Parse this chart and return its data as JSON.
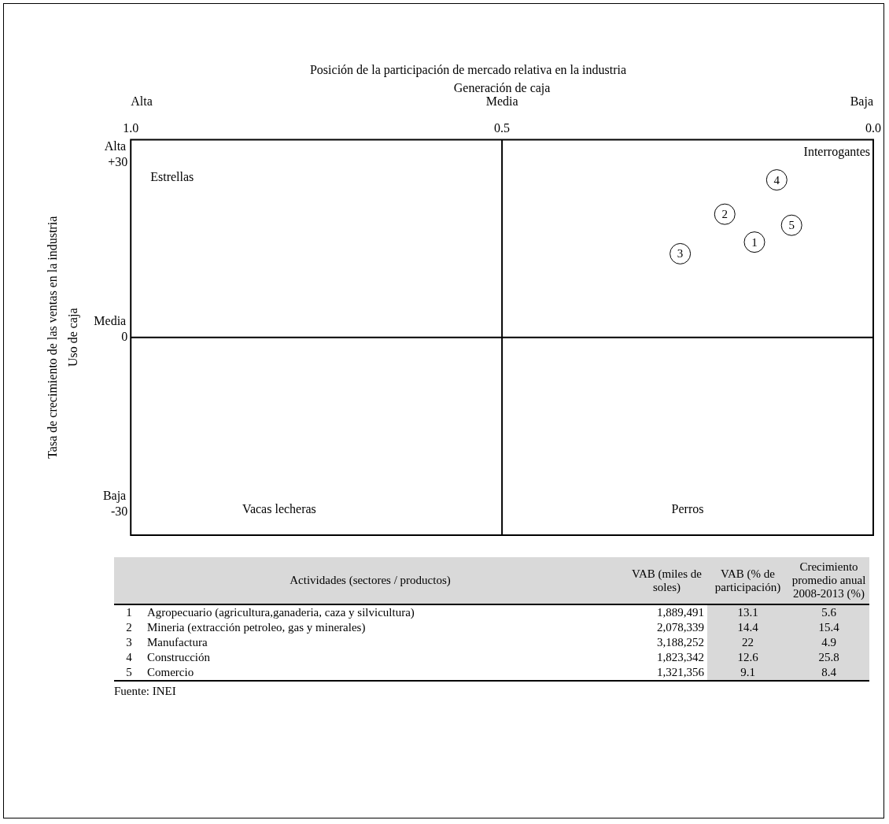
{
  "chart_data": [
    {
      "type": "scatter",
      "title": "Posición de la participación de mercado relativa en la industria",
      "xlabel": "Generación de caja",
      "ylabel": "Uso de caja",
      "xlim": [
        1,
        0
      ],
      "xticks": [
        {
          "value": 1,
          "label": "1.0"
        },
        {
          "value": 0.5,
          "label": "0.5"
        },
        {
          "value": 0,
          "label": "0.0"
        }
      ],
      "ylim": [
        -34,
        34
      ],
      "yticks": [
        {
          "value": 30,
          "label": "+30"
        },
        0,
        -30
      ],
      "series": [
        {
          "name": "1",
          "color": "#000000",
          "x": [
            0.16
          ],
          "values": [
            16.4
          ]
        },
        {
          "name": "2",
          "color": "#000000",
          "x": [
            0.2
          ],
          "values": [
            21.2
          ]
        },
        {
          "name": "3",
          "color": "#000000",
          "x": [
            0.26
          ],
          "values": [
            14.4
          ]
        },
        {
          "name": "4",
          "color": "#000000",
          "x": [
            0.13
          ],
          "values": [
            27.1
          ]
        },
        {
          "name": "5",
          "color": "#000000",
          "x": [
            0.11
          ],
          "values": [
            19.3
          ]
        }
      ],
      "marker": "circle",
      "legend": false,
      "ref_lines": [
        {
          "axis": "x",
          "value": 0.5,
          "color": "#000000"
        },
        {
          "axis": "y",
          "value": 0,
          "color": "#000000"
        }
      ],
      "annotations": [
        "Estrellas",
        "Interrogantes",
        "Vacas lecheras",
        "Perros",
        "Alta",
        "Media",
        "Baja",
        "Alta",
        "Media",
        "Baja",
        "Tasa de crecimiento de las ventas en la industria"
      ]
    },
    {
      "type": "other",
      "title": "Actividades (sectores / productos)",
      "categories": [
        "Agropecuario (agricultura,ganaderia, caza y silvicultura)",
        "Mineria (extracción petroleo, gas y minerales)",
        "Manufactura",
        "Construcción",
        "Comercio"
      ],
      "series": [
        {
          "values": [
            1,
            2,
            3,
            4,
            5
          ]
        },
        {
          "name": "VAB (miles de soles)",
          "values": [
            1889491,
            2078339,
            3188252,
            1823342,
            1321356
          ],
          "value_labels": [
            "1,889,491",
            "2,078,339",
            "3,188,252",
            "1,823,342",
            "1,321,356"
          ]
        },
        {
          "name": "VAB (% de participación)",
          "color": "#d9d9d9",
          "values": [
            13.1,
            14.4,
            22,
            12.6,
            9.1
          ]
        },
        {
          "name": "Crecimiento promedio anual 2008-2013 (%)",
          "color": "#d9d9d9",
          "values": [
            5.6,
            15.4,
            4.9,
            25.8,
            8.4
          ]
        }
      ],
      "data_labels": true,
      "annotations": [
        "Fuente: INEI"
      ]
    }
  ]
}
